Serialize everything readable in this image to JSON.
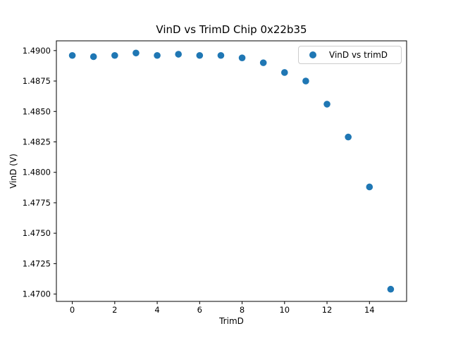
{
  "chart_data": {
    "type": "scatter",
    "title": "VinD vs TrimD Chip 0x22b35",
    "xlabel": "TrimD",
    "ylabel": "VinD (V)",
    "legend": [
      "VinD vs trimD"
    ],
    "legend_position": "upper right",
    "marker_color": "#1f77b4",
    "grid": false,
    "x": [
      0,
      1,
      2,
      3,
      4,
      5,
      6,
      7,
      8,
      9,
      10,
      11,
      12,
      13,
      14,
      15
    ],
    "y": [
      1.4896,
      1.4895,
      1.4896,
      1.4898,
      1.4896,
      1.4897,
      1.4896,
      1.4896,
      1.4894,
      1.489,
      1.4882,
      1.4875,
      1.4856,
      1.4829,
      1.4788,
      1.4704
    ],
    "series": [
      {
        "name": "VinD vs trimD",
        "x": [
          0,
          1,
          2,
          3,
          4,
          5,
          6,
          7,
          8,
          9,
          10,
          11,
          12,
          13,
          14,
          15
        ],
        "values": [
          1.4896,
          1.4895,
          1.4896,
          1.4898,
          1.4896,
          1.4897,
          1.4896,
          1.4896,
          1.4894,
          1.489,
          1.4882,
          1.4875,
          1.4856,
          1.4829,
          1.4788,
          1.4704
        ]
      }
    ],
    "xlim": [
      -0.75,
      15.75
    ],
    "ylim": [
      1.4694,
      1.4908
    ],
    "xticks": [
      0,
      2,
      4,
      6,
      8,
      10,
      12,
      14
    ],
    "xtick_labels": [
      "0",
      "2",
      "4",
      "6",
      "8",
      "10",
      "12",
      "14"
    ],
    "yticks": [
      1.47,
      1.4725,
      1.475,
      1.4775,
      1.48,
      1.4825,
      1.485,
      1.4875,
      1.49
    ],
    "ytick_labels": [
      "1.4700",
      "1.4725",
      "1.4750",
      "1.4775",
      "1.4800",
      "1.4825",
      "1.4850",
      "1.4875",
      "1.4900"
    ]
  }
}
